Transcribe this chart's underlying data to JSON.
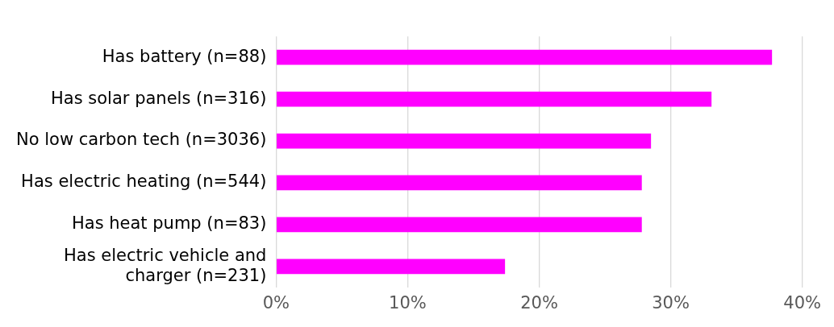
{
  "chart_data": {
    "type": "bar",
    "orientation": "horizontal",
    "categories": [
      "Has battery (n=88)",
      "Has solar panels (n=316)",
      "No low carbon tech (n=3036)",
      "Has electric heating (n=544)",
      "Has heat pump (n=83)",
      "Has electric vehicle and charger (n=231)"
    ],
    "values": [
      37.7,
      33.1,
      28.5,
      27.8,
      27.8,
      17.4
    ],
    "color": "#ff00ff",
    "xlim": [
      0,
      40
    ],
    "xticks": [
      {
        "value": 0,
        "label": "0%"
      },
      {
        "value": 10,
        "label": "10%"
      },
      {
        "value": 20,
        "label": "20%"
      },
      {
        "value": 30,
        "label": "30%"
      },
      {
        "value": 40,
        "label": "40%"
      }
    ],
    "grid": "x",
    "legend": false
  }
}
